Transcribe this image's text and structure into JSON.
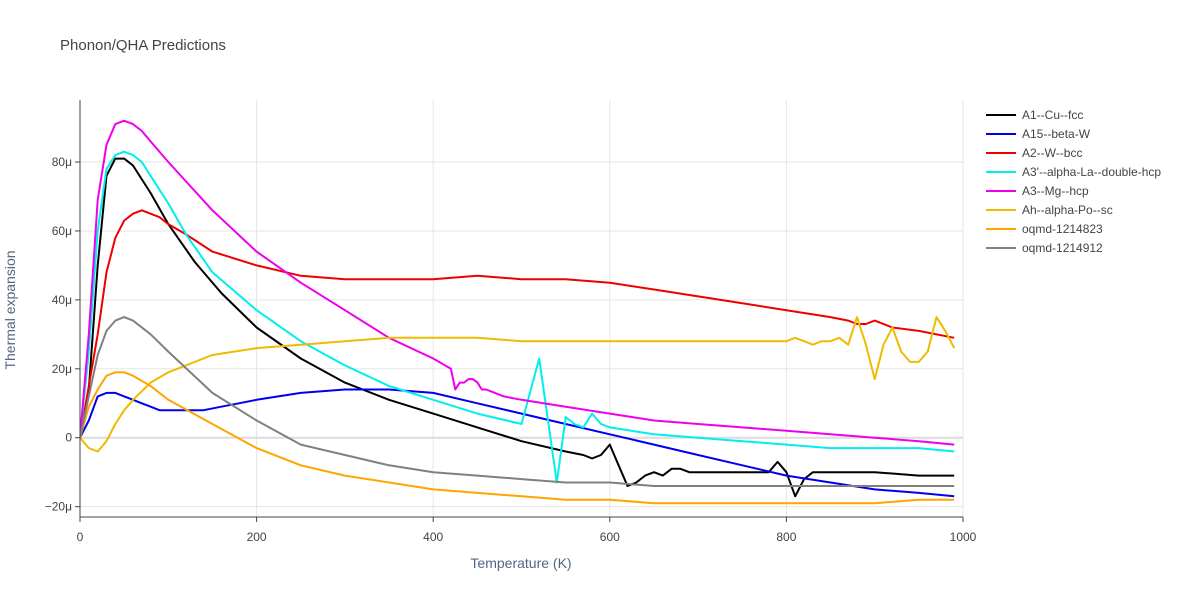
{
  "chart_data": {
    "type": "line",
    "title": "Phonon/QHA Predictions",
    "xlabel": "Temperature (K)",
    "ylabel": "Thermal expansion",
    "xlim": [
      0,
      1000
    ],
    "ylim": [
      -23,
      98
    ],
    "xticks": [
      0,
      200,
      400,
      600,
      800,
      1000
    ],
    "xtick_labels": [
      "0",
      "200",
      "400",
      "600",
      "800",
      "1000"
    ],
    "yticks": [
      -20,
      0,
      20,
      40,
      60,
      80
    ],
    "ytick_labels": [
      "−20μ",
      "0",
      "20μ",
      "40μ",
      "60μ",
      "80μ"
    ],
    "grid": true,
    "legend_position": "right",
    "series": [
      {
        "name": "A1--Cu--fcc",
        "color": "#000000",
        "x": [
          0,
          10,
          20,
          30,
          40,
          50,
          60,
          80,
          100,
          130,
          160,
          200,
          250,
          300,
          350,
          400,
          450,
          500,
          550,
          570,
          580,
          590,
          600,
          610,
          620,
          630,
          640,
          650,
          660,
          670,
          680,
          690,
          700,
          710,
          720,
          730,
          740,
          750,
          760,
          770,
          780,
          790,
          800,
          810,
          820,
          830,
          840,
          850,
          900,
          950,
          990
        ],
        "y": [
          0,
          14,
          50,
          76,
          81,
          81,
          79,
          71,
          62,
          51,
          42,
          32,
          23,
          16,
          11,
          7,
          3,
          -1,
          -4,
          -5,
          -6,
          -5,
          -2,
          -8,
          -14,
          -13,
          -11,
          -10,
          -11,
          -9,
          -9,
          -10,
          -10,
          -10,
          -10,
          -10,
          -10,
          -10,
          -10,
          -10,
          -10,
          -7,
          -10,
          -17,
          -12,
          -10,
          -10,
          -10,
          -10,
          -11,
          -11
        ]
      },
      {
        "name": "A15--beta-W",
        "color": "#0000ee",
        "x": [
          0,
          10,
          20,
          30,
          40,
          50,
          60,
          70,
          80,
          90,
          100,
          120,
          140,
          160,
          180,
          200,
          250,
          300,
          350,
          400,
          450,
          500,
          550,
          600,
          650,
          700,
          750,
          800,
          850,
          900,
          950,
          990
        ],
        "y": [
          0,
          5,
          12,
          13,
          13,
          12,
          11,
          10,
          9,
          8,
          8,
          8,
          8,
          9,
          10,
          11,
          13,
          14,
          14,
          13,
          10,
          7,
          4,
          1,
          -2,
          -5,
          -8,
          -11,
          -13,
          -15,
          -16,
          -17
        ]
      },
      {
        "name": "A2--W--bcc",
        "color": "#ee0000",
        "x": [
          0,
          10,
          20,
          30,
          40,
          50,
          60,
          70,
          80,
          90,
          100,
          120,
          150,
          200,
          250,
          300,
          350,
          400,
          450,
          500,
          550,
          600,
          650,
          700,
          750,
          800,
          850,
          870,
          880,
          890,
          900,
          920,
          950,
          990
        ],
        "y": [
          0,
          15,
          30,
          48,
          58,
          63,
          65,
          66,
          65,
          64,
          62,
          59,
          54,
          50,
          47,
          46,
          46,
          46,
          47,
          46,
          46,
          45,
          43,
          41,
          39,
          37,
          35,
          34,
          33,
          33,
          34,
          32,
          31,
          29
        ]
      },
      {
        "name": "A3'--alpha-La--double-hcp",
        "color": "#00eeee",
        "x": [
          0,
          10,
          20,
          30,
          40,
          50,
          60,
          70,
          80,
          100,
          120,
          150,
          200,
          250,
          300,
          350,
          400,
          450,
          500,
          520,
          530,
          540,
          550,
          560,
          570,
          580,
          590,
          600,
          650,
          700,
          750,
          800,
          850,
          900,
          950,
          990
        ],
        "y": [
          0,
          25,
          60,
          78,
          82,
          83,
          82,
          80,
          76,
          68,
          59,
          48,
          37,
          28,
          21,
          15,
          11,
          7,
          4,
          23,
          5,
          -13,
          6,
          4,
          3,
          7,
          4,
          3,
          1,
          0,
          -1,
          -2,
          -3,
          -3,
          -3,
          -4
        ]
      },
      {
        "name": "A3--Mg--hcp",
        "color": "#ee00ee",
        "x": [
          0,
          10,
          20,
          30,
          40,
          50,
          60,
          70,
          80,
          100,
          150,
          200,
          250,
          300,
          350,
          400,
          420,
          425,
          430,
          435,
          440,
          445,
          450,
          455,
          460,
          470,
          480,
          500,
          550,
          600,
          650,
          700,
          750,
          800,
          850,
          900,
          950,
          990
        ],
        "y": [
          0,
          30,
          69,
          85,
          91,
          92,
          91,
          89,
          86,
          80,
          66,
          54,
          45,
          37,
          29,
          23,
          20,
          14,
          16,
          16,
          17,
          17,
          16,
          14,
          14,
          13,
          12,
          11,
          9,
          7,
          5,
          4,
          3,
          2,
          1,
          0,
          -1,
          -2
        ]
      },
      {
        "name": "Ah--alpha-Po--sc",
        "color": "#eebb00",
        "x": [
          0,
          10,
          20,
          30,
          40,
          50,
          60,
          80,
          100,
          150,
          200,
          250,
          300,
          350,
          400,
          450,
          500,
          550,
          600,
          650,
          700,
          750,
          790,
          800,
          810,
          820,
          830,
          840,
          850,
          860,
          870,
          880,
          890,
          900,
          910,
          920,
          930,
          940,
          950,
          960,
          970,
          980,
          990
        ],
        "y": [
          0,
          -3,
          -4,
          -1,
          4,
          8,
          11,
          16,
          19,
          24,
          26,
          27,
          28,
          29,
          29,
          29,
          28,
          28,
          28,
          28,
          28,
          28,
          28,
          28,
          29,
          28,
          27,
          28,
          28,
          29,
          27,
          35,
          27,
          17,
          27,
          32,
          25,
          22,
          22,
          25,
          35,
          31,
          26
        ]
      },
      {
        "name": "oqmd-1214823",
        "color": "#ffa500",
        "x": [
          0,
          10,
          20,
          30,
          40,
          50,
          60,
          80,
          100,
          150,
          200,
          250,
          300,
          350,
          400,
          450,
          500,
          550,
          600,
          650,
          700,
          750,
          800,
          850,
          900,
          950,
          990
        ],
        "y": [
          0,
          9,
          14,
          18,
          19,
          19,
          18,
          15,
          11,
          4,
          -3,
          -8,
          -11,
          -13,
          -15,
          -16,
          -17,
          -18,
          -18,
          -19,
          -19,
          -19,
          -19,
          -19,
          -19,
          -18,
          -18
        ]
      },
      {
        "name": "oqmd-1214912",
        "color": "#808080",
        "x": [
          0,
          10,
          20,
          30,
          40,
          50,
          60,
          80,
          100,
          150,
          200,
          250,
          300,
          350,
          400,
          450,
          500,
          550,
          600,
          650,
          700,
          750,
          800,
          850,
          900,
          950,
          990
        ],
        "y": [
          0,
          12,
          24,
          31,
          34,
          35,
          34,
          30,
          25,
          13,
          5,
          -2,
          -5,
          -8,
          -10,
          -11,
          -12,
          -13,
          -13,
          -14,
          -14,
          -14,
          -14,
          -14,
          -14,
          -14,
          -14
        ]
      }
    ]
  }
}
